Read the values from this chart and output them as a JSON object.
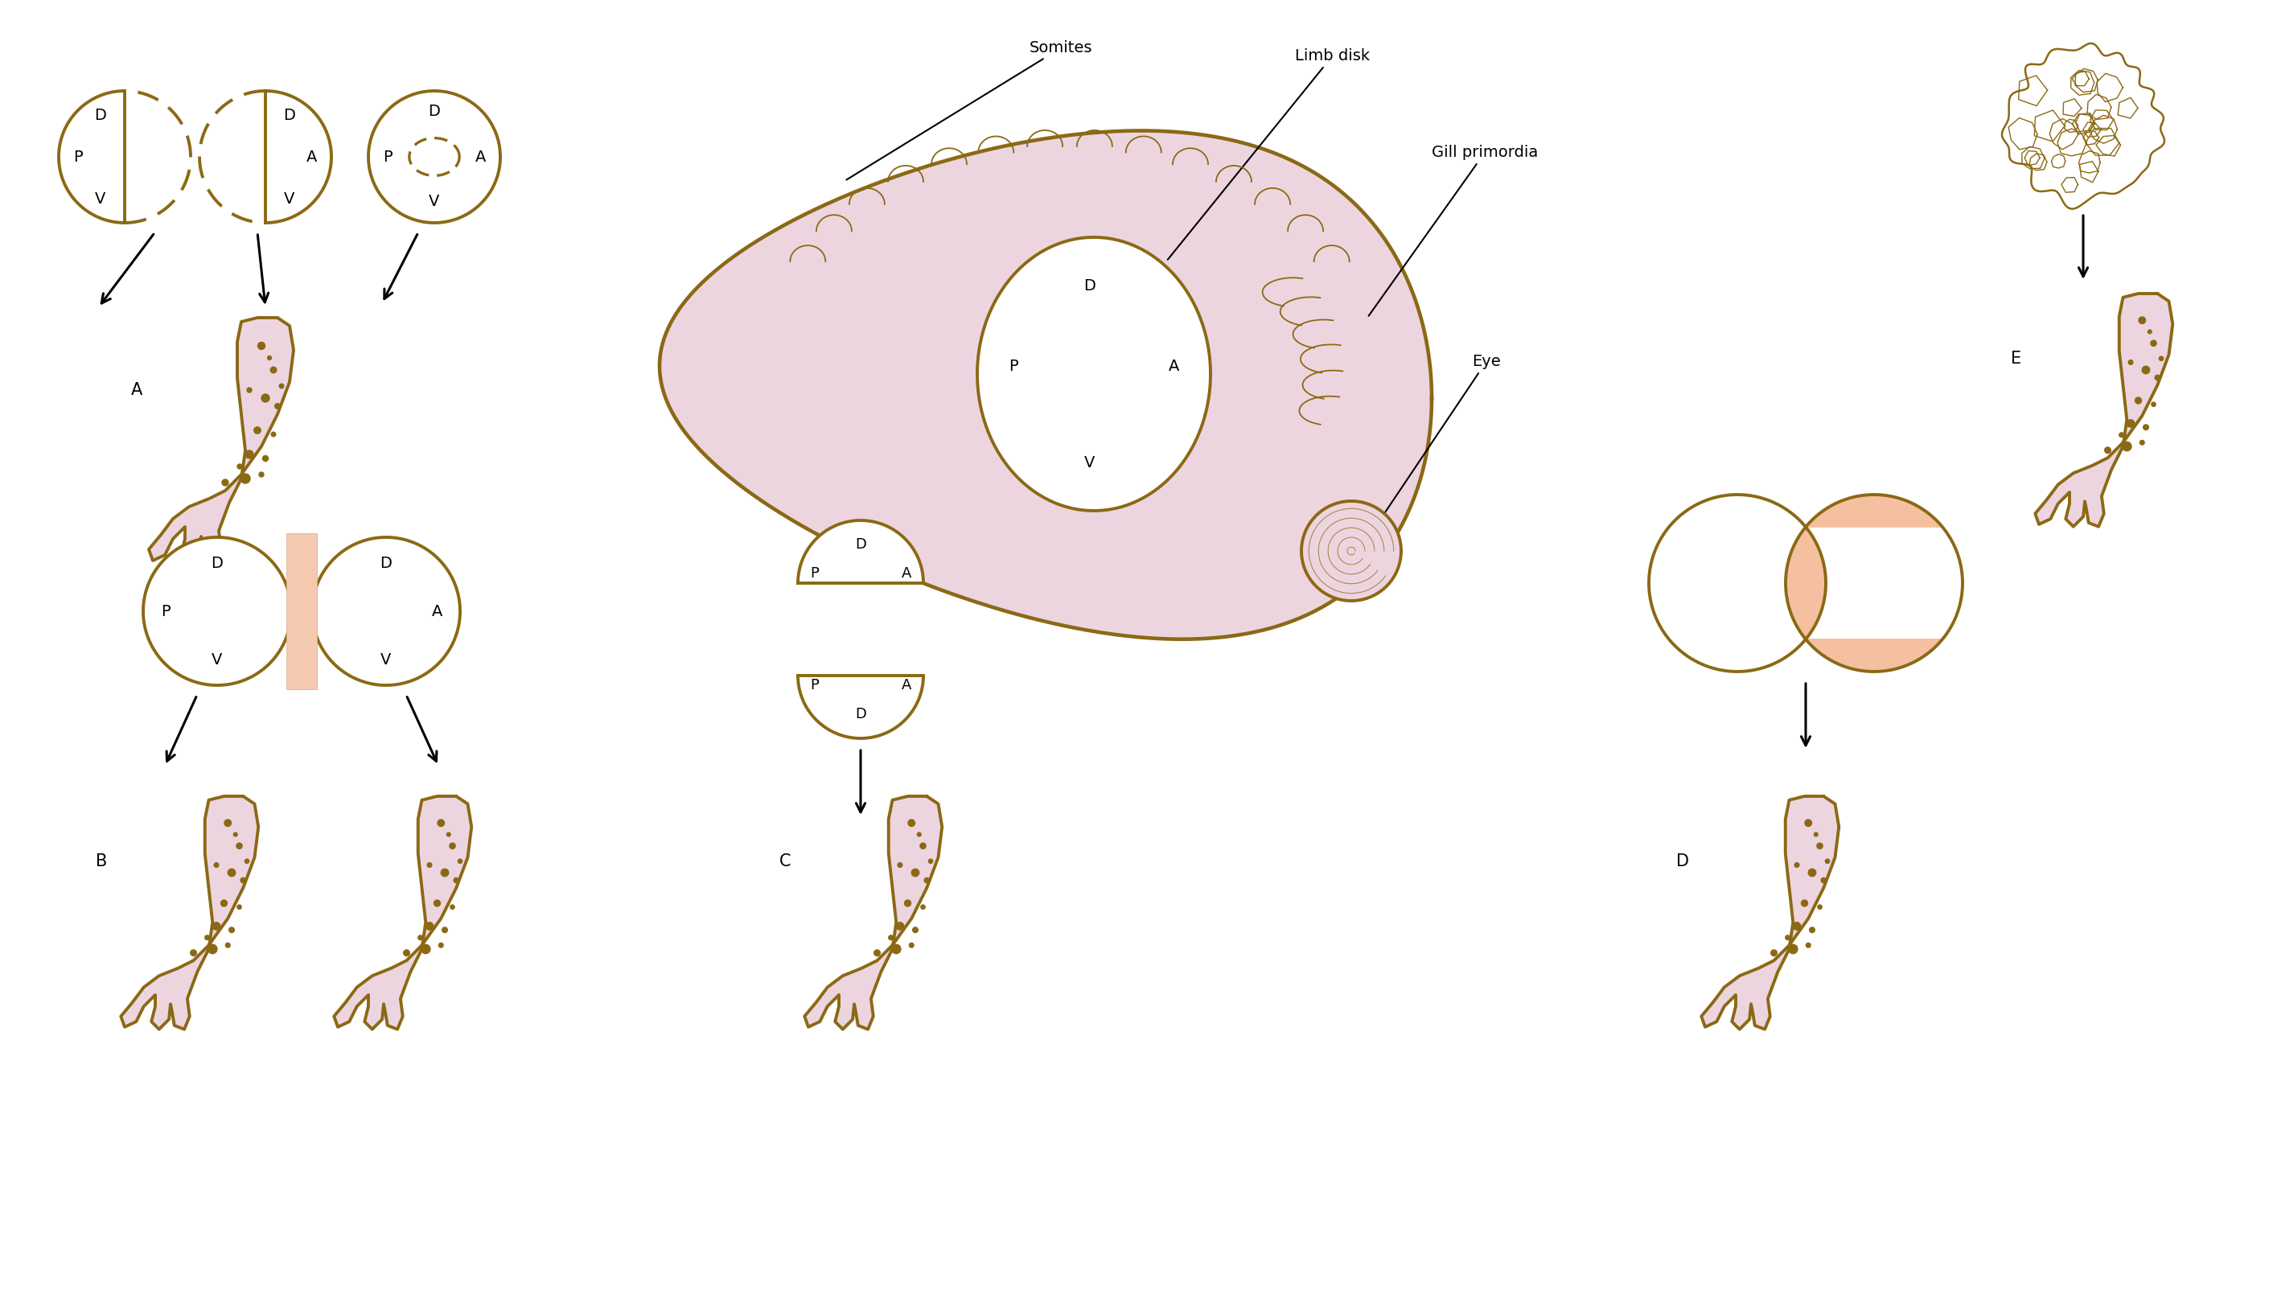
{
  "bg_color": "#ffffff",
  "gold": "#8B6914",
  "pink": "#EDD5E0",
  "pink_light": "#EDD8E4",
  "salmon": "#F5C8A8",
  "fig_width": 28.01,
  "fig_height": 16.15,
  "lw": 2.8
}
